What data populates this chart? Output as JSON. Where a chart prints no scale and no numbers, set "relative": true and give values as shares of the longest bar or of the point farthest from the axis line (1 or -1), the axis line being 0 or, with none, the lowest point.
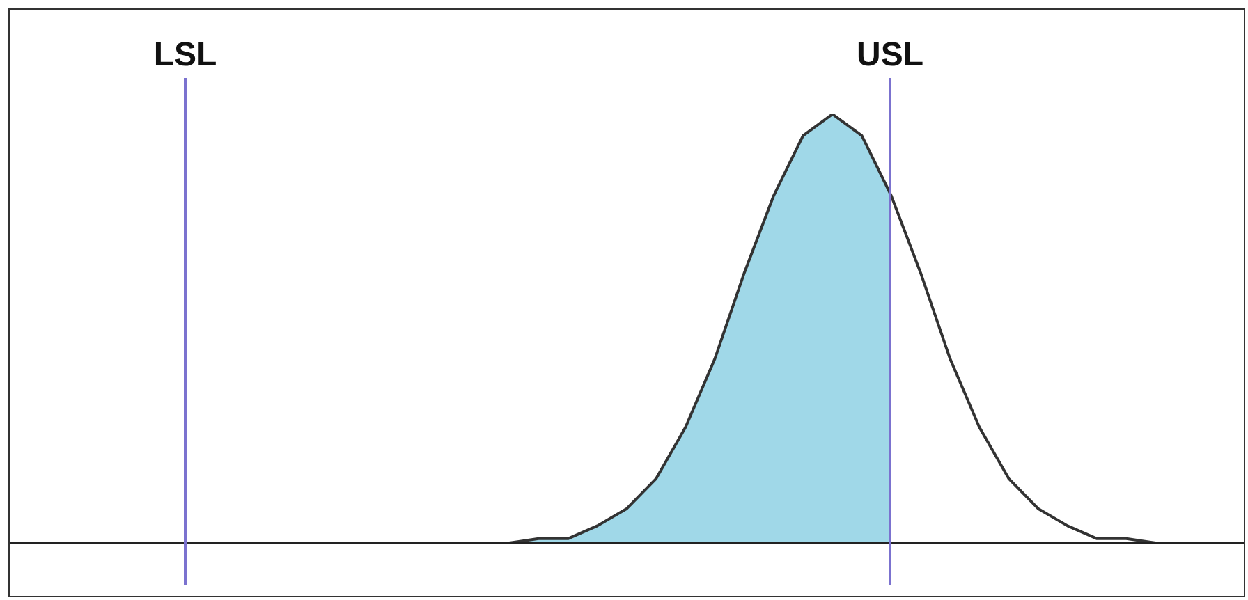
{
  "chart_data": {
    "type": "line",
    "relative": true,
    "categories": [
      null,
      null,
      null,
      null,
      null,
      null,
      null,
      null,
      null,
      null,
      null,
      null,
      null,
      null,
      null,
      null,
      null,
      null,
      null,
      null,
      null,
      null,
      null,
      null,
      null,
      null,
      null,
      null,
      null,
      null,
      null,
      null,
      null,
      null,
      null,
      null,
      null,
      null,
      null,
      null,
      null,
      null,
      null
    ],
    "series": [
      {
        "type": "area",
        "color": "#a0d8e8",
        "values": [
          0,
          0,
          0,
          0,
          0,
          0,
          0,
          0,
          0,
          0,
          0,
          0,
          0,
          0,
          0,
          0,
          0,
          0,
          0.01,
          0.01,
          0.04,
          0.08,
          0.15,
          0.27,
          0.43,
          0.63,
          0.81,
          0.95,
          1,
          0.95,
          0.81,
          null,
          null,
          null,
          null,
          null,
          null,
          null,
          null,
          null,
          null,
          null,
          null
        ]
      },
      {
        "color": "#333333",
        "values": [
          0,
          0,
          0,
          0,
          0,
          0,
          0,
          0,
          0,
          0,
          0,
          0,
          0,
          0,
          0,
          0,
          0,
          0,
          0.01,
          0.01,
          0.04,
          0.08,
          0.15,
          0.27,
          0.43,
          0.63,
          0.81,
          0.95,
          1,
          0.95,
          0.81,
          0.63,
          0.43,
          0.27,
          0.15,
          0.08,
          0.04,
          0.01,
          0.01,
          0,
          0,
          0,
          0
        ]
      }
    ],
    "annotations": [
      "LSL",
      "USL"
    ]
  }
}
